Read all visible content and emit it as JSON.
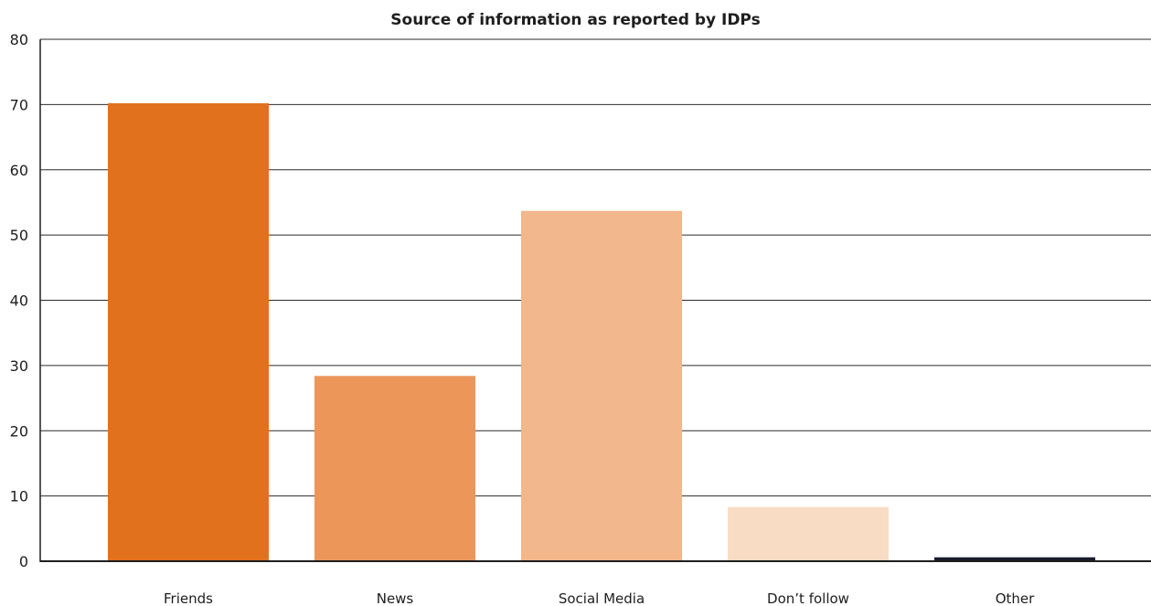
{
  "chart_data": {
    "type": "bar",
    "title": "Source of information as reported by IDPs",
    "xlabel": "",
    "ylabel": "",
    "categories": [
      "Friends",
      "News",
      "Social Media",
      "Don’t follow",
      "Other"
    ],
    "values": [
      70.2,
      28.4,
      53.7,
      8.3,
      0.6
    ],
    "colors": [
      "#e2711d",
      "#ed9659",
      "#f2b78b",
      "#f8dcc4",
      "#1b1b2e"
    ],
    "ylim": [
      0,
      80
    ],
    "yticks": [
      0,
      10,
      20,
      30,
      40,
      50,
      60,
      70,
      80
    ],
    "grid": true
  }
}
